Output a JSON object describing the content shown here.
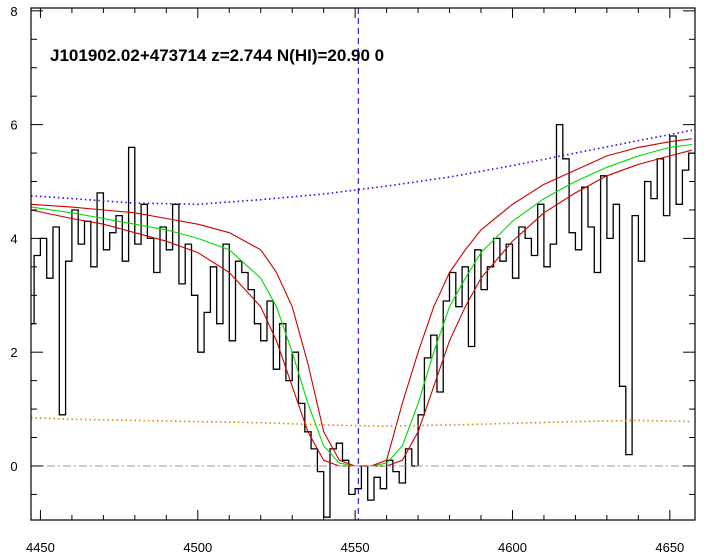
{
  "chart_data": {
    "type": "line",
    "title": "J101902.02+473714 z=2.744 N(HI)=20.90 0",
    "xlabel": "",
    "ylabel": "",
    "xlim": [
      4447,
      4658
    ],
    "ylim": [
      -0.95,
      8.05
    ],
    "grid": false,
    "xticks": [
      4450,
      4500,
      4550,
      4600,
      4650
    ],
    "xtick_labels": [
      "4450",
      "4500",
      "4550",
      "4600",
      "4650"
    ],
    "yticks": [
      0,
      2,
      4,
      6,
      8
    ],
    "ytick_labels": [
      "0",
      "2",
      "4",
      "6",
      "8"
    ],
    "reference_lines": [
      {
        "name": "absorber-center",
        "axis": "x",
        "value": 4551,
        "color": "#0000cc",
        "style": "dashed"
      },
      {
        "name": "zero-level",
        "axis": "y",
        "value": 0,
        "color": "#999999",
        "style": "dashdot"
      }
    ],
    "colors": {
      "flux": "#000000",
      "model": "#00dd00",
      "model_bounds": "#cc0000",
      "continuum": "#3300ff",
      "error": "#dd8800"
    },
    "series": [
      {
        "key": "flux",
        "style": "steps",
        "x": [
          4447,
          4449,
          4451,
          4453,
          4455,
          4457,
          4459,
          4461,
          4463,
          4465,
          4467,
          4469,
          4471,
          4473,
          4475,
          4477,
          4479,
          4481,
          4483,
          4485,
          4487,
          4489,
          4491,
          4493,
          4495,
          4497,
          4499,
          4501,
          4503,
          4505,
          4507,
          4509,
          4511,
          4513,
          4515,
          4517,
          4519,
          4521,
          4523,
          4525,
          4527,
          4529,
          4531,
          4533,
          4535,
          4537,
          4539,
          4541,
          4543,
          4545,
          4547,
          4549,
          4551,
          4553,
          4555,
          4557,
          4559,
          4561,
          4563,
          4565,
          4567,
          4569,
          4571,
          4573,
          4575,
          4577,
          4579,
          4581,
          4583,
          4585,
          4587,
          4589,
          4591,
          4593,
          4595,
          4597,
          4599,
          4601,
          4603,
          4605,
          4607,
          4609,
          4611,
          4613,
          4615,
          4617,
          4619,
          4621,
          4623,
          4625,
          4627,
          4629,
          4631,
          4633,
          4635,
          4637,
          4639,
          4641,
          4643,
          4645,
          4647,
          4649,
          4651,
          4653,
          4655,
          4657
        ],
        "y": [
          2.5,
          3.7,
          4.0,
          3.3,
          4.2,
          0.9,
          3.6,
          4.5,
          3.9,
          4.3,
          3.5,
          4.8,
          3.8,
          4.1,
          4.4,
          3.6,
          5.6,
          3.9,
          4.6,
          4.0,
          3.4,
          4.2,
          3.8,
          4.6,
          3.2,
          3.9,
          3.0,
          2.0,
          2.7,
          3.5,
          2.5,
          3.9,
          2.2,
          3.6,
          3.4,
          3.1,
          2.5,
          2.2,
          2.9,
          1.7,
          2.5,
          1.5,
          2.0,
          1.1,
          0.6,
          0.3,
          -0.1,
          -0.9,
          0.3,
          0.4,
          0.1,
          -0.5,
          -0.4,
          0.0,
          -0.6,
          -0.2,
          -0.4,
          0.1,
          -0.1,
          -0.3,
          0.3,
          0.0,
          0.9,
          1.9,
          2.3,
          1.3,
          2.9,
          3.4,
          2.8,
          3.5,
          2.1,
          3.8,
          3.1,
          3.5,
          4.0,
          3.6,
          3.9,
          3.3,
          4.2,
          4.0,
          3.7,
          4.6,
          3.5,
          3.9,
          6.0,
          5.4,
          4.1,
          3.8,
          4.9,
          4.2,
          3.4,
          5.1,
          4.0,
          4.6,
          1.4,
          0.2,
          4.4,
          3.6,
          5.0,
          4.7,
          5.4,
          4.4,
          5.8,
          4.6,
          5.2,
          5.5
        ]
      },
      {
        "key": "model",
        "style": "line",
        "x": [
          4447,
          4460,
          4470,
          4480,
          4490,
          4500,
          4510,
          4520,
          4525,
          4530,
          4535,
          4540,
          4545,
          4550,
          4555,
          4560,
          4565,
          4570,
          4575,
          4580,
          4585,
          4590,
          4600,
          4610,
          4620,
          4630,
          4640,
          4650,
          4657
        ],
        "y": [
          4.55,
          4.45,
          4.35,
          4.25,
          4.15,
          4.0,
          3.8,
          3.3,
          2.8,
          2.0,
          1.1,
          0.35,
          0.05,
          0.0,
          0.0,
          0.05,
          0.35,
          1.1,
          2.0,
          2.8,
          3.3,
          3.75,
          4.3,
          4.7,
          5.0,
          5.25,
          5.45,
          5.6,
          5.65
        ]
      },
      {
        "key": "model_upper",
        "style": "line",
        "x": [
          4447,
          4460,
          4470,
          4480,
          4490,
          4500,
          4510,
          4520,
          4525,
          4530,
          4535,
          4540,
          4545,
          4550,
          4555,
          4560,
          4565,
          4570,
          4575,
          4580,
          4585,
          4590,
          4600,
          4610,
          4620,
          4630,
          4640,
          4650,
          4657
        ],
        "y": [
          4.6,
          4.55,
          4.5,
          4.45,
          4.35,
          4.25,
          4.1,
          3.8,
          3.4,
          2.8,
          1.8,
          0.6,
          0.1,
          0.0,
          0.0,
          0.1,
          1.1,
          2.0,
          2.8,
          3.4,
          3.8,
          4.15,
          4.6,
          4.95,
          5.2,
          5.45,
          5.6,
          5.7,
          5.75
        ]
      },
      {
        "key": "model_lower",
        "style": "line",
        "x": [
          4447,
          4460,
          4470,
          4480,
          4490,
          4500,
          4510,
          4520,
          4525,
          4530,
          4535,
          4540,
          4545,
          4550,
          4555,
          4560,
          4565,
          4570,
          4575,
          4580,
          4585,
          4590,
          4600,
          4610,
          4620,
          4630,
          4640,
          4650,
          4657
        ],
        "y": [
          4.5,
          4.35,
          4.25,
          4.1,
          3.95,
          3.75,
          3.4,
          2.8,
          2.2,
          1.4,
          0.6,
          0.1,
          0.0,
          0.0,
          0.0,
          0.0,
          0.1,
          0.6,
          1.4,
          2.2,
          2.8,
          3.3,
          3.95,
          4.45,
          4.8,
          5.1,
          5.3,
          5.45,
          5.55
        ]
      },
      {
        "key": "continuum",
        "style": "dotted",
        "x": [
          4447,
          4460,
          4480,
          4500,
          4520,
          4540,
          4560,
          4580,
          4600,
          4620,
          4640,
          4657
        ],
        "y": [
          4.75,
          4.7,
          4.62,
          4.6,
          4.68,
          4.78,
          4.92,
          5.08,
          5.28,
          5.5,
          5.72,
          5.9
        ]
      },
      {
        "key": "error",
        "style": "dotted",
        "x": [
          4447,
          4460,
          4480,
          4500,
          4520,
          4540,
          4560,
          4580,
          4600,
          4620,
          4640,
          4657
        ],
        "y": [
          0.85,
          0.82,
          0.8,
          0.78,
          0.76,
          0.72,
          0.7,
          0.72,
          0.75,
          0.78,
          0.8,
          0.78
        ]
      }
    ]
  }
}
